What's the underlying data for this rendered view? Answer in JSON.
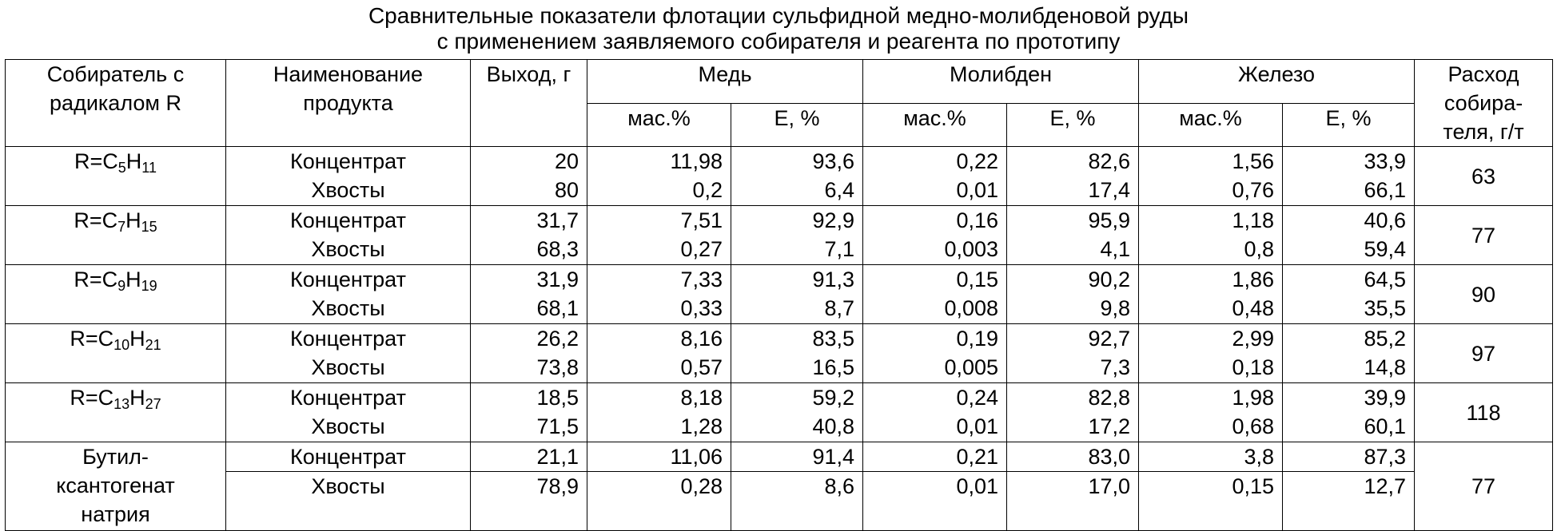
{
  "title_line1": "Сравнительные показатели флотации сульфидной медно-молибденовой руды",
  "title_line2": "с применением заявляемого собирателя и реагента по прототипу",
  "headers": {
    "collector": "Собиратель с радикалом R",
    "product": "Наименование продукта",
    "yield": "Выход, г",
    "copper": "Медь",
    "molybdenum": "Молибден",
    "iron": "Железо",
    "consumption": "Расход собира-теля, г/т",
    "mass": "мас.%",
    "recovery": "Е, %"
  },
  "product_names": {
    "concentrate": "Концентрат",
    "tails": "Хвосты"
  },
  "rows": [
    {
      "r_prefix": "R=C",
      "c": "5",
      "h_prefix": "H",
      "h": "11",
      "concentrate": [
        "20",
        "11,98",
        "93,6",
        "0,22",
        "82,6",
        "1,56",
        "33,9"
      ],
      "tails": [
        "80",
        "0,2",
        "6,4",
        "0,01",
        "17,4",
        "0,76",
        "66,1"
      ],
      "consumption": "63"
    },
    {
      "r_prefix": "R=C",
      "c": "7",
      "h_prefix": "H",
      "h": "15",
      "concentrate": [
        "31,7",
        "7,51",
        "92,9",
        "0,16",
        "95,9",
        "1,18",
        "40,6"
      ],
      "tails": [
        "68,3",
        "0,27",
        "7,1",
        "0,003",
        "4,1",
        "0,8",
        "59,4"
      ],
      "consumption": "77"
    },
    {
      "r_prefix": "R=C",
      "c": "9",
      "h_prefix": "H",
      "h": "19",
      "concentrate": [
        "31,9",
        "7,33",
        "91,3",
        "0,15",
        "90,2",
        "1,86",
        "64,5"
      ],
      "tails": [
        "68,1",
        "0,33",
        "8,7",
        "0,008",
        "9,8",
        "0,48",
        "35,5"
      ],
      "consumption": "90"
    },
    {
      "r_prefix": "R=C",
      "c": "10",
      "h_prefix": "H",
      "h": "21",
      "concentrate": [
        "26,2",
        "8,16",
        "83,5",
        "0,19",
        "92,7",
        "2,99",
        "85,2"
      ],
      "tails": [
        "73,8",
        "0,57",
        "16,5",
        "0,005",
        "7,3",
        "0,18",
        "14,8"
      ],
      "consumption": "97"
    },
    {
      "r_prefix": "R=C",
      "c": "13",
      "h_prefix": "H",
      "h": "27",
      "concentrate": [
        "18,5",
        "8,18",
        "59,2",
        "0,24",
        "82,8",
        "1,98",
        "39,9"
      ],
      "tails": [
        "71,5",
        "1,28",
        "40,8",
        "0,01",
        "17,2",
        "0,68",
        "60,1"
      ],
      "consumption": "118"
    }
  ],
  "prototype": {
    "name_line1": "Бутил-",
    "name_line2": "ксантогенат",
    "name_line3": "натрия",
    "concentrate": [
      "21,1",
      "11,06",
      "91,4",
      "0,21",
      "83,0",
      "3,8",
      "87,3"
    ],
    "tails": [
      "78,9",
      "0,28",
      "8,6",
      "0,01",
      "17,0",
      "0,15",
      "12,7"
    ],
    "consumption": "77"
  }
}
